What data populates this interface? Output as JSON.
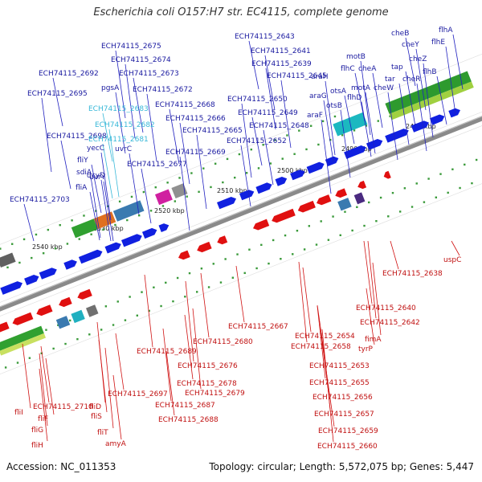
{
  "title": "Escherichia coli O157:H7 str. EC4115, complete genome",
  "footer": {
    "accession": "Accession: NC_011353",
    "summary": "Topology: circular; Length: 5,572,075 bp; Genes: 5,447"
  },
  "colors": {
    "forward_gene": "#1020e0",
    "reverse_gene": "#e01010",
    "top_label": "#1a1aa0",
    "highlight_label": "#38b8d8",
    "bottom_label": "#c01010",
    "backbone": "#8a8a8a"
  },
  "ruler": [
    {
      "text": "2480 kbp"
    },
    {
      "text": "2490 kbp"
    },
    {
      "text": "2500 kbp"
    },
    {
      "text": "2510 kbp"
    },
    {
      "text": "2520 kbp"
    },
    {
      "text": "2530 kbp"
    },
    {
      "text": "2540 kbp"
    }
  ],
  "top_labels": [
    {
      "text": "cheB",
      "kind": "top"
    },
    {
      "text": "flhA",
      "kind": "top"
    },
    {
      "text": "cheY",
      "kind": "top"
    },
    {
      "text": "flhE",
      "kind": "top"
    },
    {
      "text": "cheZ",
      "kind": "top"
    },
    {
      "text": "flhB",
      "kind": "top"
    },
    {
      "text": "tap",
      "kind": "top"
    },
    {
      "text": "tar",
      "kind": "top"
    },
    {
      "text": "cheR",
      "kind": "top"
    },
    {
      "text": "motB",
      "kind": "top"
    },
    {
      "text": "flhC",
      "kind": "top"
    },
    {
      "text": "cheA",
      "kind": "top"
    },
    {
      "text": "motA",
      "kind": "top"
    },
    {
      "text": "cheW",
      "kind": "top"
    },
    {
      "text": "araH",
      "kind": "top"
    },
    {
      "text": "otsA",
      "kind": "top"
    },
    {
      "text": "flhD",
      "kind": "top"
    },
    {
      "text": "araG",
      "kind": "top"
    },
    {
      "text": "otsB",
      "kind": "top"
    },
    {
      "text": "araF",
      "kind": "top"
    },
    {
      "text": "ECH74115_2643",
      "kind": "top"
    },
    {
      "text": "ECH74115_2641",
      "kind": "top"
    },
    {
      "text": "ECH74115_2639",
      "kind": "top"
    },
    {
      "text": "ECH74115_2645",
      "kind": "top"
    },
    {
      "text": "ECH74115_2650",
      "kind": "top"
    },
    {
      "text": "ECH74115_2649",
      "kind": "top"
    },
    {
      "text": "ECH74115_2648",
      "kind": "top"
    },
    {
      "text": "ECH74115_2652",
      "kind": "top"
    },
    {
      "text": "ECH74115_2675",
      "kind": "top"
    },
    {
      "text": "ECH74115_2674",
      "kind": "top"
    },
    {
      "text": "ECH74115_2692",
      "kind": "top"
    },
    {
      "text": "ECH74115_2673",
      "kind": "top"
    },
    {
      "text": "pgsA",
      "kind": "top"
    },
    {
      "text": "ECH74115_2672",
      "kind": "top"
    },
    {
      "text": "ECH74115_2695",
      "kind": "top"
    },
    {
      "text": "ECH74115_2683",
      "kind": "highlight"
    },
    {
      "text": "ECH74115_2668",
      "kind": "top"
    },
    {
      "text": "ECH74115_2666",
      "kind": "top"
    },
    {
      "text": "ECH74115_2682",
      "kind": "highlight"
    },
    {
      "text": "ECH74115_2665",
      "kind": "top"
    },
    {
      "text": "ECH74115_2698",
      "kind": "top"
    },
    {
      "text": "ECH74115_2681",
      "kind": "highlight"
    },
    {
      "text": "uvrC",
      "kind": "top"
    },
    {
      "text": "yecC",
      "kind": "top"
    },
    {
      "text": "ECH74115_2669",
      "kind": "top"
    },
    {
      "text": "fliY",
      "kind": "top"
    },
    {
      "text": "ECH74115_2677",
      "kind": "top"
    },
    {
      "text": "sdiA",
      "kind": "top"
    },
    {
      "text": "dcyD",
      "kind": "top"
    },
    {
      "text": "uvrY",
      "kind": "top"
    },
    {
      "text": "fliA",
      "kind": "top"
    },
    {
      "text": "ECH74115_2703",
      "kind": "top"
    }
  ],
  "bottom_labels": [
    {
      "text": "uspC"
    },
    {
      "text": "ECH74115_2638"
    },
    {
      "text": "ECH74115_2640"
    },
    {
      "text": "ECH74115_2642"
    },
    {
      "text": "ECH74115_2667"
    },
    {
      "text": "ECH74115_2654"
    },
    {
      "text": "fimA"
    },
    {
      "text": "ECH74115_2658"
    },
    {
      "text": "tyrP"
    },
    {
      "text": "ECH74115_2680"
    },
    {
      "text": "ECH74115_2689"
    },
    {
      "text": "ECH74115_2676"
    },
    {
      "text": "ECH74115_2653"
    },
    {
      "text": "ECH74115_2678"
    },
    {
      "text": "ECH74115_2655"
    },
    {
      "text": "ECH74115_2679"
    },
    {
      "text": "ECH74115_2697"
    },
    {
      "text": "ECH74115_2656"
    },
    {
      "text": "ECH74115_2687"
    },
    {
      "text": "fliD"
    },
    {
      "text": "ECH74115_2710"
    },
    {
      "text": "fliI"
    },
    {
      "text": "fliS"
    },
    {
      "text": "ECH74115_2657"
    },
    {
      "text": "fliF"
    },
    {
      "text": "ECH74115_2688"
    },
    {
      "text": "fliG"
    },
    {
      "text": "fliT"
    },
    {
      "text": "ECH74115_2659"
    },
    {
      "text": "amyA"
    },
    {
      "text": "fliH"
    },
    {
      "text": "ECH74115_2660"
    }
  ]
}
